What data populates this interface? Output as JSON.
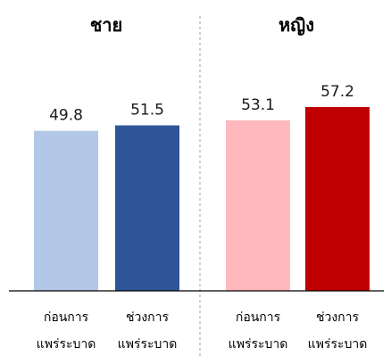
{
  "chart_data": {
    "type": "bar",
    "groups": [
      {
        "title": "ชาย",
        "bars": [
          {
            "label_line1": "ก่อนการ",
            "label_line2": "แพร่ระบาด",
            "value": 49.8,
            "value_text": "49.8",
            "color": "#b3c7e6"
          },
          {
            "label_line1": "ช่วงการ",
            "label_line2": "แพร่ระบาด",
            "value": 51.5,
            "value_text": "51.5",
            "color": "#2e5597"
          }
        ]
      },
      {
        "title": "หญิง",
        "bars": [
          {
            "label_line1": "ก่อนการ",
            "label_line2": "แพร่ระบาด",
            "value": 53.1,
            "value_text": "53.1",
            "color": "#ffb9be"
          },
          {
            "label_line1": "ช่วงการ",
            "label_line2": "แพร่ระบาด",
            "value": 57.2,
            "value_text": "57.2",
            "color": "#c00000"
          }
        ]
      }
    ],
    "axis_color": "#000000",
    "divider_color": "#9aa3ad"
  }
}
